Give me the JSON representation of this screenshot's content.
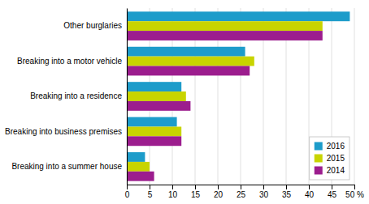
{
  "chart_data": {
    "type": "bar",
    "orientation": "horizontal",
    "categories": [
      "Breaking into a summer house",
      "Breaking into business premises",
      "Breaking into a residence",
      "Breaking into a motor vehicle",
      "Other burglaries"
    ],
    "series": [
      {
        "name": "2016",
        "color": "#1d9cca",
        "values": [
          4,
          11,
          12,
          26,
          49
        ]
      },
      {
        "name": "2015",
        "color": "#c8d400",
        "values": [
          5,
          12,
          13,
          28,
          43
        ]
      },
      {
        "name": "2014",
        "color": "#9c1d8e",
        "values": [
          6,
          12,
          14,
          27,
          43
        ]
      }
    ],
    "xlim": [
      0,
      50
    ],
    "xticks": [
      0,
      5,
      10,
      15,
      20,
      25,
      30,
      35,
      40,
      45,
      {
        "value": 50,
        "label": "50 %"
      }
    ],
    "grid": true,
    "legend": "lower right"
  }
}
